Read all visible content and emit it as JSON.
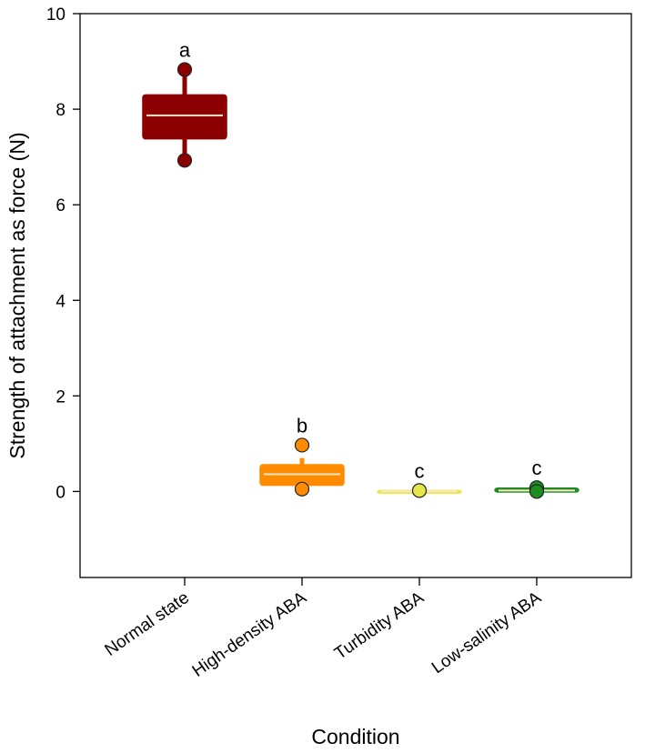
{
  "chart_data": {
    "type": "box",
    "xlabel": "Condition",
    "ylabel": "Strength of attachment as force (N)",
    "ylim": [
      -1.8,
      10
    ],
    "yticks": [
      0,
      2,
      4,
      6,
      8,
      10
    ],
    "grid": false,
    "categories": [
      "Normal state",
      "High-density ABA",
      "Turbidity ABA",
      "Low-salinity ABA"
    ],
    "boxes": [
      {
        "q1": 7.38,
        "median": 7.87,
        "q3": 8.3,
        "whisker_low": 6.93,
        "whisker_high": 8.83,
        "outliers": [],
        "points": [
          8.83,
          6.93
        ],
        "letter": "a",
        "color": "#8b0000"
      },
      {
        "q1": 0.13,
        "median": 0.36,
        "q3": 0.56,
        "whisker_low": 0.05,
        "whisker_high": 0.7,
        "outliers": [
          0.97
        ],
        "points": [
          0.97,
          0.05
        ],
        "letter": "b",
        "color": "#ff8c00"
      },
      {
        "q1": -0.02,
        "median": 0.0,
        "q3": 0.02,
        "whisker_low": -0.02,
        "whisker_high": 0.02,
        "outliers": [],
        "points": [
          0.02
        ],
        "letter": "c",
        "color": "#e6e64d"
      },
      {
        "q1": -0.01,
        "median": 0.02,
        "q3": 0.07,
        "whisker_low": -0.01,
        "whisker_high": 0.08,
        "outliers": [],
        "points": [
          0.08,
          0.0
        ],
        "letter": "c",
        "color": "#1e8c1e"
      }
    ]
  }
}
